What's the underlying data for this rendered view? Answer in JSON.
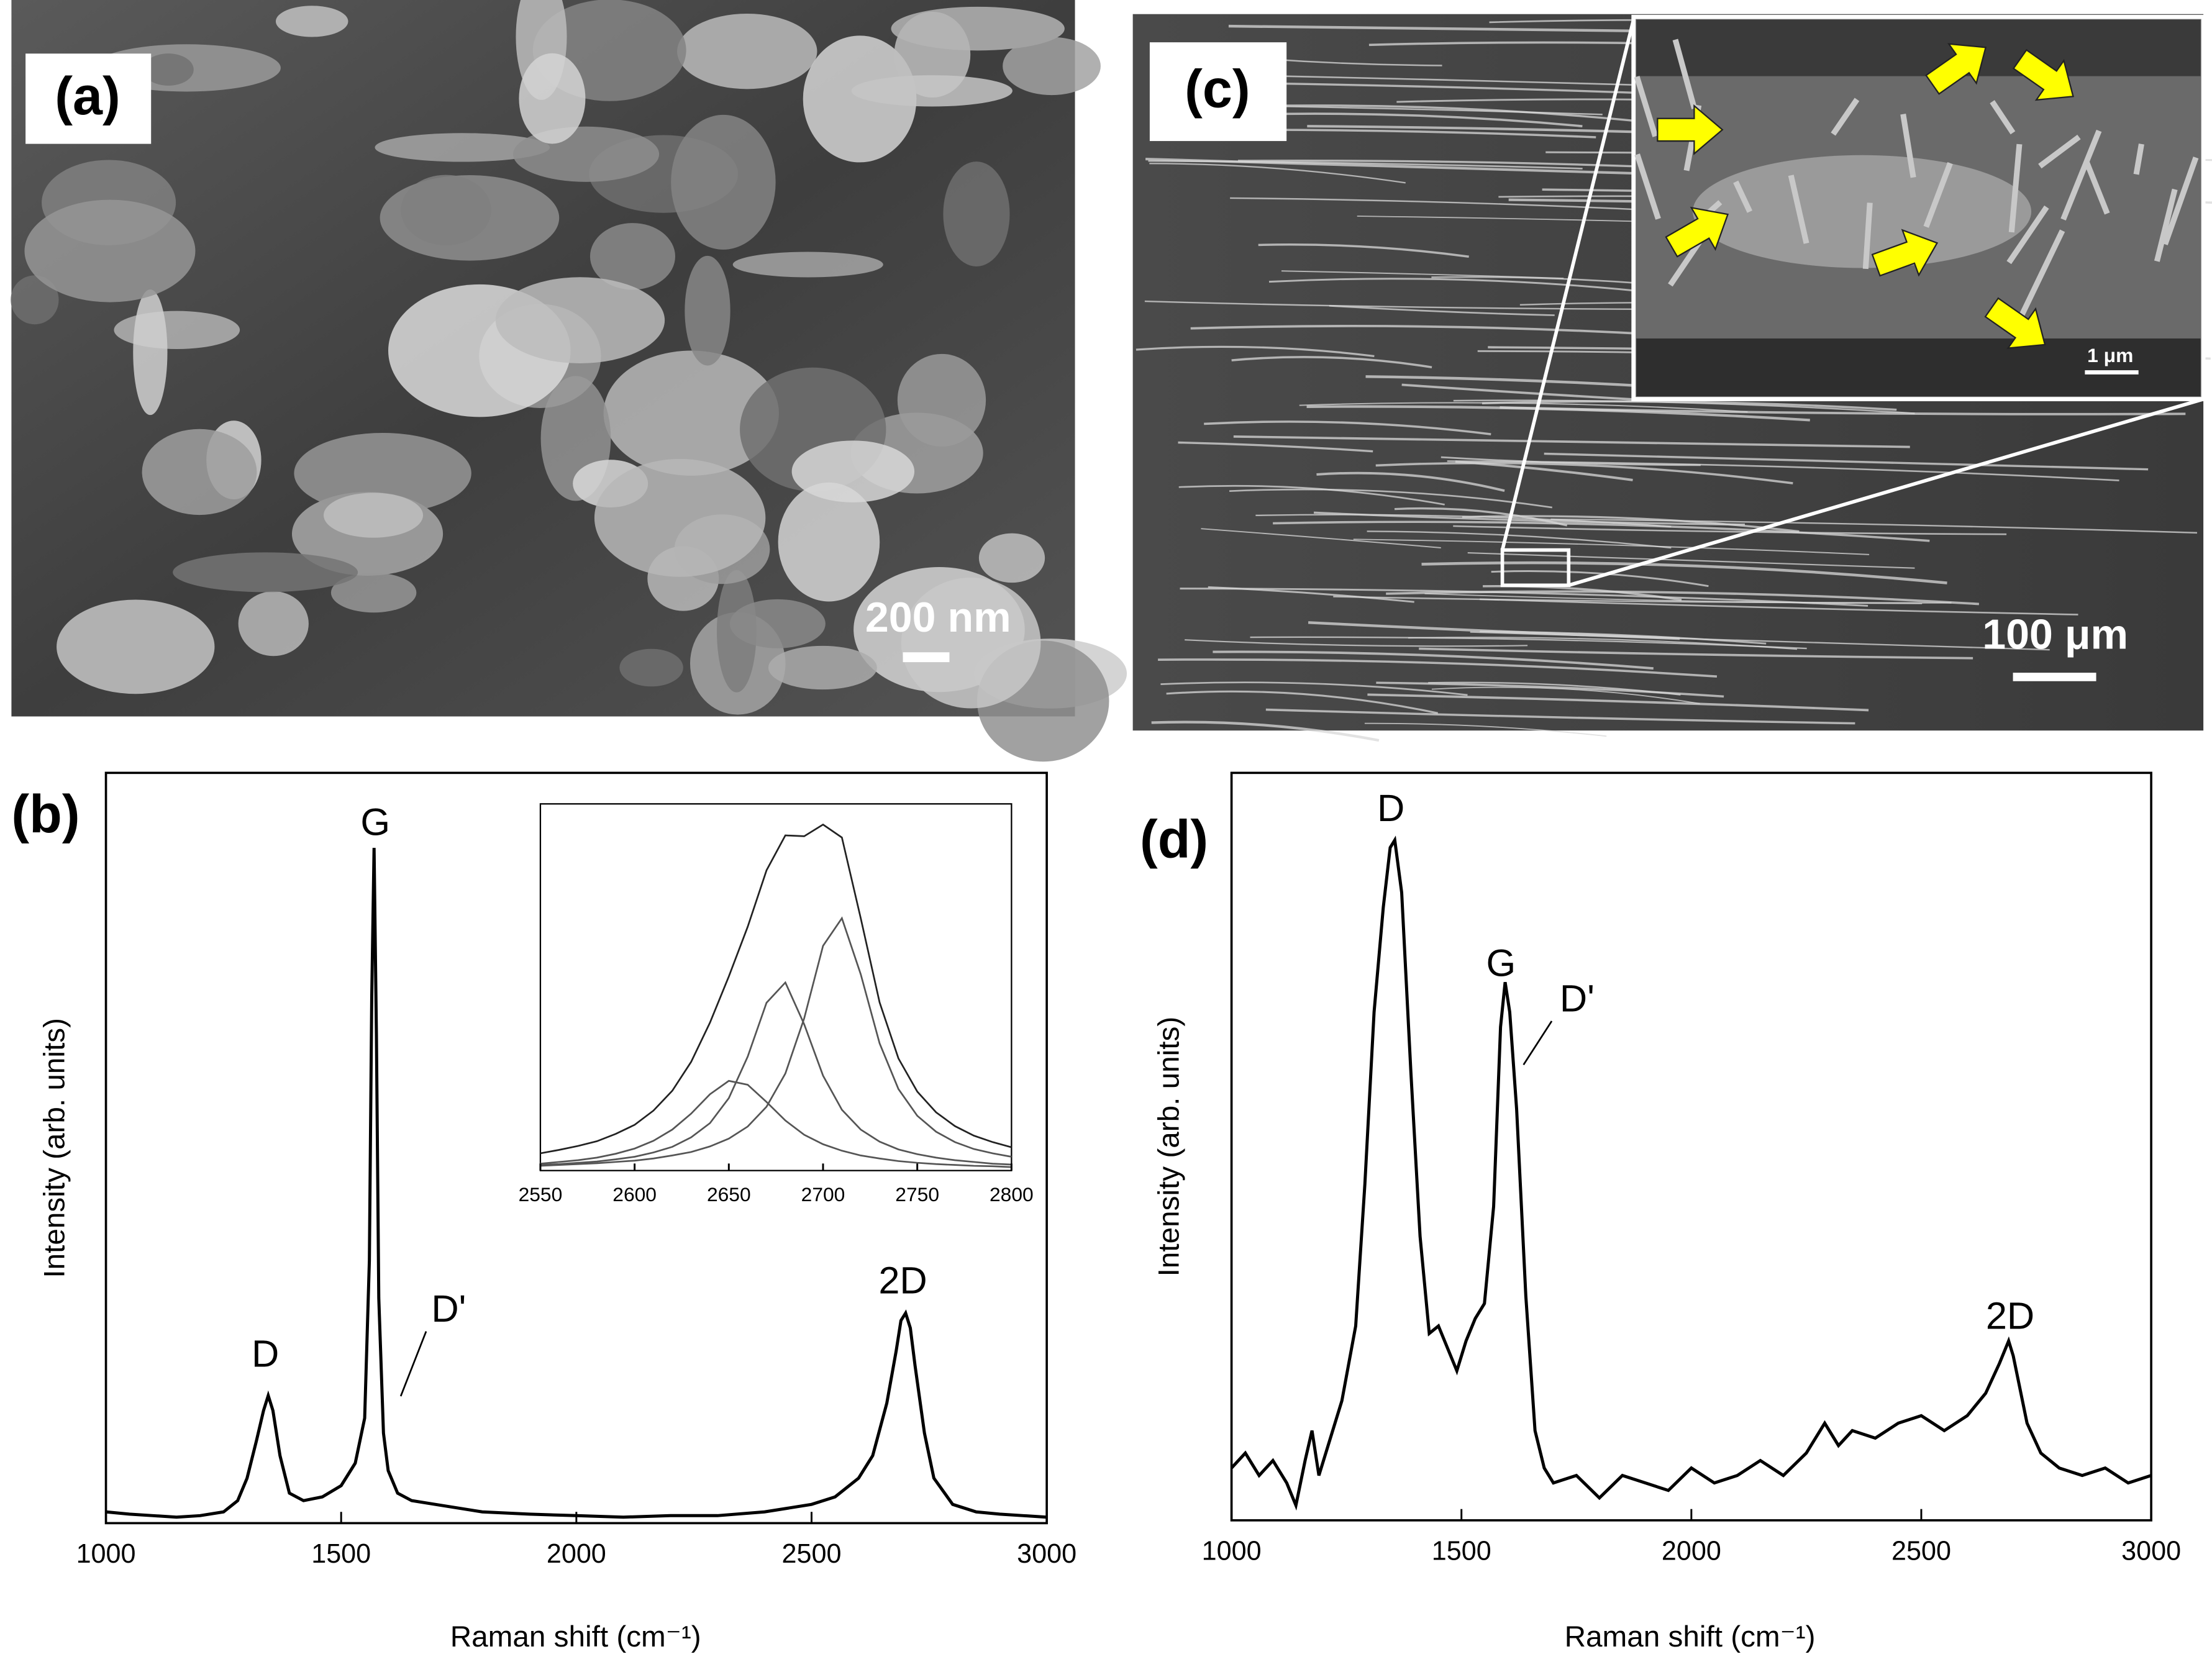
{
  "figure": {
    "panels": [
      {
        "label": "(a)",
        "scale_bar": "200 nm"
      },
      {
        "label": "(c)",
        "scale_bar": "100 μm",
        "inset_scale_bar": "1 μm"
      }
    ]
  },
  "chart_data": [
    {
      "type": "line",
      "label": "(b)",
      "x_label": "Raman shift (cm⁻¹)",
      "y_label": "Intensity (arb. units)",
      "x": [
        1000,
        1050,
        1100,
        1150,
        1200,
        1250,
        1280,
        1300,
        1320,
        1335,
        1345,
        1355,
        1370,
        1390,
        1420,
        1460,
        1500,
        1530,
        1550,
        1560,
        1565,
        1570,
        1575,
        1580,
        1590,
        1600,
        1620,
        1650,
        1700,
        1800,
        1900,
        2000,
        2100,
        2200,
        2300,
        2400,
        2450,
        2500,
        2550,
        2600,
        2630,
        2660,
        2680,
        2690,
        2700,
        2710,
        2720,
        2740,
        2760,
        2800,
        2850,
        2900,
        2950,
        3000
      ],
      "series": [
        {
          "color": "#000000",
          "values": [
            1.5,
            1.2,
            1.0,
            0.8,
            1.0,
            1.5,
            3,
            6,
            11,
            15,
            17,
            15,
            9,
            4,
            3,
            3.5,
            5,
            8,
            14,
            35,
            70,
            90,
            65,
            30,
            12,
            7,
            4,
            3,
            2.5,
            1.5,
            1.2,
            1.0,
            0.8,
            1.0,
            1.0,
            1.5,
            2,
            2.5,
            3.5,
            6,
            9,
            16,
            23,
            27,
            28,
            26,
            21,
            12,
            6,
            2.5,
            1.5,
            1.2,
            1.0,
            0.8
          ]
        }
      ],
      "xlim": [
        1000,
        3000
      ],
      "xticks": [
        1000,
        1500,
        2000,
        2500,
        3000
      ],
      "ylim": [
        0,
        100
      ],
      "annotations": [
        "D",
        "G",
        "D'",
        "2D"
      ]
    },
    {
      "type": "line",
      "x": [
        2550,
        2560,
        2570,
        2580,
        2590,
        2600,
        2610,
        2620,
        2630,
        2640,
        2650,
        2660,
        2670,
        2680,
        2690,
        2700,
        2710,
        2720,
        2730,
        2740,
        2750,
        2760,
        2770,
        2780,
        2790,
        2800
      ],
      "series": [
        {
          "color": "#222222",
          "values": [
            4.0,
            4.8,
            5.7,
            6.8,
            8.5,
            10.6,
            13.9,
            18.5,
            25.2,
            34.3,
            45.0,
            56.5,
            69.6,
            77.7,
            77.5,
            80.2,
            77.2,
            58.5,
            39.0,
            26.0,
            18.3,
            13.5,
            10.3,
            8.1,
            6.6,
            5.4
          ]
        },
        {
          "color": "#555555",
          "values": [
            1.1,
            1.3,
            1.5,
            1.7,
            2.0,
            2.3,
            2.8,
            3.5,
            4.3,
            5.6,
            7.4,
            10.2,
            14.8,
            22.5,
            35.3,
            52.1,
            58.5,
            45.5,
            29.5,
            18.9,
            12.7,
            9.0,
            6.6,
            5.0,
            4.0,
            3.2
          ]
        },
        {
          "color": "#555555",
          "values": [
            1.3,
            1.5,
            1.8,
            2.1,
            2.6,
            3.2,
            4.2,
            5.5,
            7.7,
            11.0,
            16.8,
            26.4,
            38.9,
            43.6,
            33.9,
            22.0,
            14.1,
            9.5,
            6.7,
            4.9,
            3.8,
            3.0,
            2.4,
            2.0,
            1.6,
            1.4
          ]
        },
        {
          "color": "#555555",
          "values": [
            1.6,
            2.0,
            2.4,
            3.0,
            3.9,
            5.1,
            6.9,
            9.5,
            13.2,
            17.7,
            20.8,
            19.9,
            15.9,
            11.6,
            8.3,
            6.1,
            4.6,
            3.5,
            2.8,
            2.2,
            1.8,
            1.5,
            1.3,
            1.1,
            1.0,
            0.8
          ]
        }
      ],
      "xlim": [
        2550,
        2800
      ],
      "xticks": [
        2550,
        2600,
        2650,
        2700,
        2750,
        2800
      ],
      "ylim": [
        0,
        85
      ]
    },
    {
      "type": "line",
      "label": "(d)",
      "x_label": "Raman shift (cm⁻¹)",
      "y_label": "Intensity (arb. units)",
      "x": [
        1000,
        1030,
        1060,
        1090,
        1120,
        1140,
        1160,
        1175,
        1190,
        1210,
        1240,
        1270,
        1290,
        1310,
        1330,
        1345,
        1355,
        1370,
        1390,
        1410,
        1430,
        1450,
        1470,
        1490,
        1510,
        1530,
        1550,
        1570,
        1585,
        1595,
        1605,
        1620,
        1640,
        1660,
        1680,
        1700,
        1750,
        1800,
        1850,
        1900,
        1950,
        2000,
        2050,
        2100,
        2150,
        2200,
        2250,
        2290,
        2320,
        2350,
        2400,
        2450,
        2500,
        2550,
        2600,
        2640,
        2670,
        2690,
        2700,
        2710,
        2730,
        2760,
        2800,
        2850,
        2900,
        2950,
        3000
      ],
      "series": [
        {
          "color": "#000000",
          "values": [
            7,
            9,
            6,
            8,
            5,
            2,
            8,
            12,
            6,
            10,
            16,
            26,
            45,
            68,
            82,
            90,
            91,
            84,
            60,
            38,
            25,
            26,
            23,
            20,
            24,
            27,
            29,
            42,
            66,
            72,
            68,
            55,
            30,
            12,
            7,
            5,
            6,
            3,
            6,
            5,
            4,
            7,
            5,
            6,
            8,
            6,
            9,
            13,
            10,
            12,
            11,
            13,
            14,
            12,
            14,
            17,
            21,
            24,
            22,
            19,
            13,
            9,
            7,
            6,
            7,
            5,
            6
          ]
        }
      ],
      "xlim": [
        1000,
        3000
      ],
      "xticks": [
        1000,
        1500,
        2000,
        2500,
        3000
      ],
      "ylim": [
        0,
        100
      ],
      "annotations": [
        "D",
        "G",
        "D'",
        "2D"
      ]
    }
  ]
}
